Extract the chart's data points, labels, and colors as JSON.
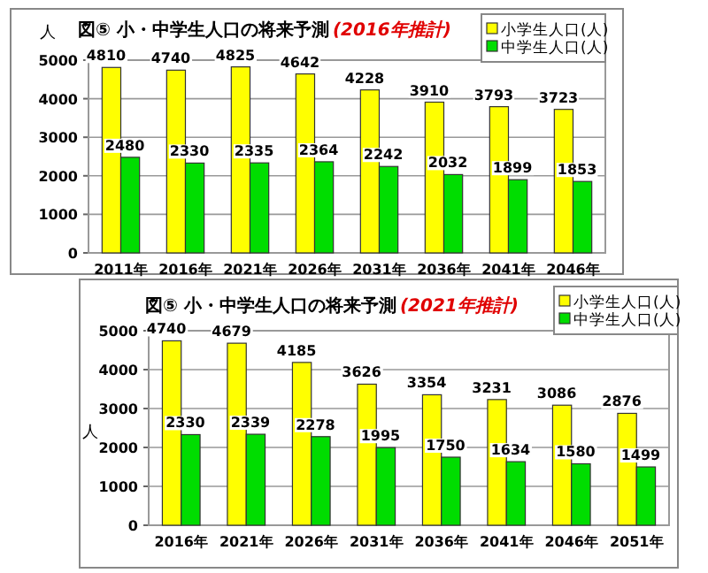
{
  "chart_data": [
    {
      "type": "bar",
      "title": "図⑤ 小・中学生人口の将来予測",
      "subtitle": "(2016年推計)",
      "ylabel": "人",
      "categories": [
        "2011年",
        "2016年",
        "2021年",
        "2026年",
        "2031年",
        "2036年",
        "2041年",
        "2046年"
      ],
      "series": [
        {
          "name": "小学生人口(人)",
          "color": "#ffff00",
          "values": [
            4810,
            4740,
            4825,
            4642,
            4228,
            3910,
            3793,
            3723
          ]
        },
        {
          "name": "中学生人口(人)",
          "color": "#00dd00",
          "values": [
            2480,
            2330,
            2335,
            2364,
            2242,
            2032,
            1899,
            1853
          ]
        }
      ],
      "ylim": [
        0,
        5000
      ],
      "yticks": [
        0,
        1000,
        2000,
        3000,
        4000,
        5000
      ],
      "grid": "y",
      "legend": "top right",
      "data_labels": true
    },
    {
      "type": "bar",
      "title": "図⑤ 小・中学生人口の将来予測",
      "subtitle": "(2021年推計)",
      "ylabel": "人",
      "categories": [
        "2016年",
        "2021年",
        "2026年",
        "2031年",
        "2036年",
        "2041年",
        "2046年",
        "2051年"
      ],
      "series": [
        {
          "name": "小学生人口(人)",
          "color": "#ffff00",
          "values": [
            4740,
            4679,
            4185,
            3626,
            3354,
            3231,
            3086,
            2876
          ]
        },
        {
          "name": "中学生人口(人)",
          "color": "#00dd00",
          "values": [
            2330,
            2339,
            2278,
            1995,
            1750,
            1634,
            1580,
            1499
          ]
        }
      ],
      "ylim": [
        0,
        5000
      ],
      "yticks": [
        0,
        1000,
        2000,
        3000,
        4000,
        5000
      ],
      "grid": "y",
      "legend": "top right",
      "data_labels": true
    }
  ]
}
